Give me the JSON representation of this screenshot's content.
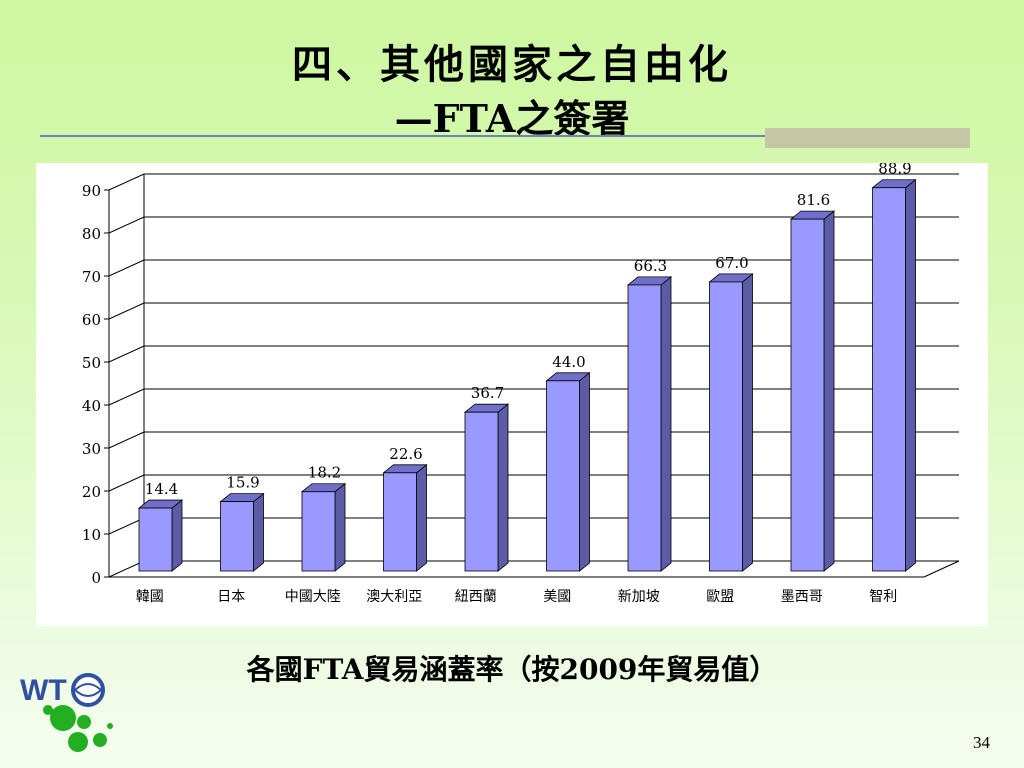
{
  "slide": {
    "title_line1": "四、其他國家之自由化",
    "title_line2": "—FTA之簽署",
    "caption": "各國FTA貿易涵蓋率（按2009年貿易值）",
    "page_number": "34",
    "logo_text": "WTO"
  },
  "colors": {
    "bar_front": "#9999ff",
    "bar_side": "#5c5ca6",
    "bar_top": "#7070cc",
    "gridline": "#000000"
  },
  "chart_data": {
    "type": "bar",
    "title": "",
    "xlabel": "",
    "ylabel": "",
    "categories": [
      "韓國",
      "日本",
      "中國大陸",
      "澳大利亞",
      "紐西蘭",
      "美國",
      "新加坡",
      "歐盟",
      "墨西哥",
      "智利"
    ],
    "values": [
      14.4,
      15.9,
      18.2,
      22.6,
      36.7,
      44.0,
      66.3,
      67.0,
      81.6,
      88.9
    ],
    "value_labels": [
      "14.4",
      "15.9",
      "18.2",
      "22.6",
      "36.7",
      "44.0",
      "66.3",
      "67.0",
      "81.6",
      "88.9"
    ],
    "ylim": [
      0,
      90
    ],
    "yticks": [
      "0",
      "10",
      "20",
      "30",
      "40",
      "50",
      "60",
      "70",
      "80",
      "90"
    ],
    "grid": true,
    "legend": "none"
  }
}
